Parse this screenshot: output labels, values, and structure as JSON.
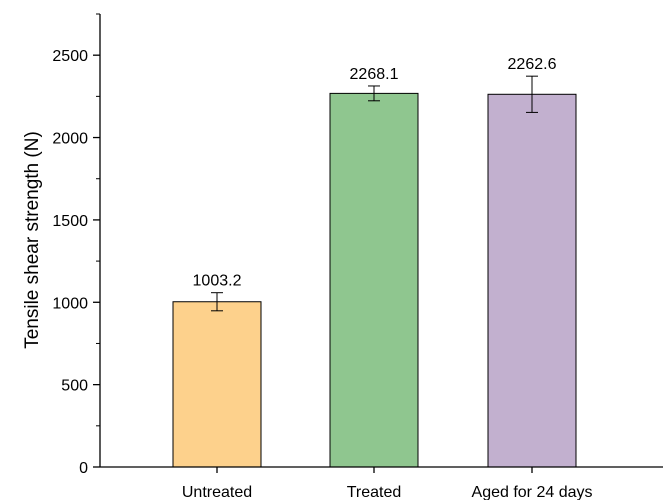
{
  "chart_data": {
    "type": "bar",
    "title": "",
    "xlabel": "",
    "ylabel": "Tensile shear strength (N)",
    "categories": [
      "Untreated",
      "Treated",
      "Aged for 24 days"
    ],
    "values": [
      1003.2,
      2268.1,
      2262.6
    ],
    "data_labels": [
      "1003.2",
      "2268.1",
      "2262.6"
    ],
    "errors": [
      55,
      45,
      110
    ],
    "colors": [
      "#FDD18C",
      "#8FC68F",
      "#C2B0CF"
    ],
    "ylim": [
      0,
      2750
    ],
    "yticks": [
      0,
      500,
      1000,
      1500,
      2000,
      2500
    ],
    "ytick_labels": [
      "0",
      "500",
      "1000",
      "1500",
      "2000",
      "2500"
    ],
    "grid": false,
    "legend": "none"
  }
}
